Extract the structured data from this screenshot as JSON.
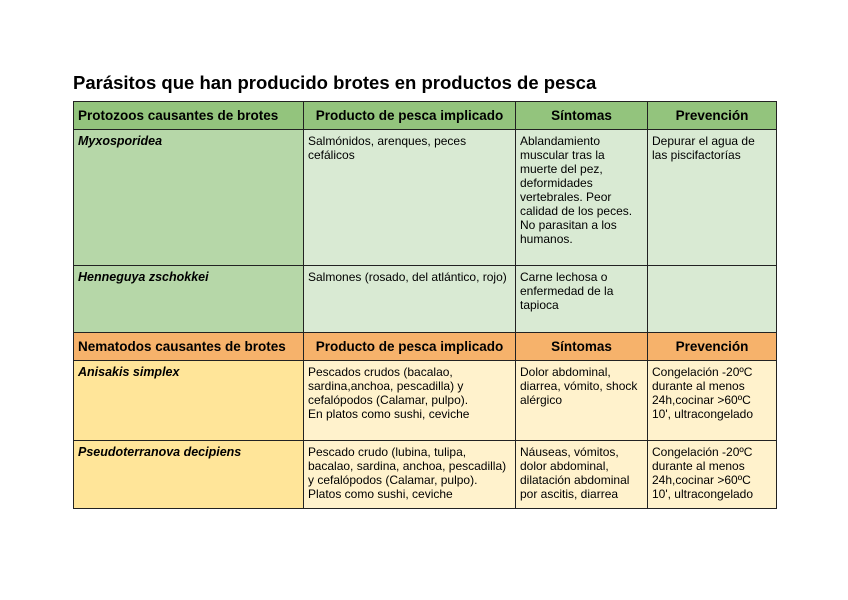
{
  "title": "Parásitos que han producido brotes en productos de pesca",
  "sections": [
    {
      "header": [
        "Protozoos causantes de brotes",
        "Producto de pesca implicado",
        "Síntomas",
        "Prevención"
      ],
      "colors": {
        "header": "#93c47d",
        "first": "#b6d7a8",
        "cell": "#d9ead3"
      },
      "rows": [
        {
          "species": "Myxosporidea",
          "producto": "Salmónidos, arenques, peces\ncefálicos",
          "sintomas": "Ablandamiento\nmuscular tras la\nmuerte del pez,\ndeformidades\nvertebrales. Peor\ncalidad de los peces.\nNo parasitan a los\nhumanos.",
          "prevencion": "Depurar el agua de\nlas piscifactorías"
        },
        {
          "species": "Henneguya zschokkei",
          "producto": "Salmones (rosado, del atlántico, rojo)",
          "sintomas": "Carne lechosa o\nenfermedad de la\ntapioca",
          "prevencion": ""
        }
      ]
    },
    {
      "header": [
        "Nematodos causantes de brotes",
        "Producto de pesca implicado",
        "Síntomas",
        "Prevención"
      ],
      "colors": {
        "header": "#f6b26b",
        "first": "#ffe599",
        "cell": "#fff2cc"
      },
      "rows": [
        {
          "species": "Anisakis simplex",
          "producto": "Pescados crudos (bacalao,\nsardina,anchoa, pescadilla) y\ncefalópodos (Calamar, pulpo).\nEn platos como sushi, ceviche",
          "sintomas": "Dolor abdominal,\ndiarrea, vómito, shock\nalérgico",
          "prevencion": "Congelación -20ºC\ndurante al menos\n24h,cocinar >60ºC\n10', ultracongelado"
        },
        {
          "species": "Pseudoterranova decipiens",
          "producto": "Pescado crudo (lubina, tulipa,\nbacalao, sardina, anchoa, pescadilla)\ny cefalópodos (Calamar, pulpo).\nPlatos como sushi, ceviche",
          "sintomas": "Náuseas, vómitos,\ndolor abdominal,\ndilatación abdominal\npor ascitis, diarrea",
          "prevencion": "Congelación -20ºC\ndurante al menos\n24h,cocinar >60ºC\n10', ultracongelado"
        }
      ]
    }
  ]
}
